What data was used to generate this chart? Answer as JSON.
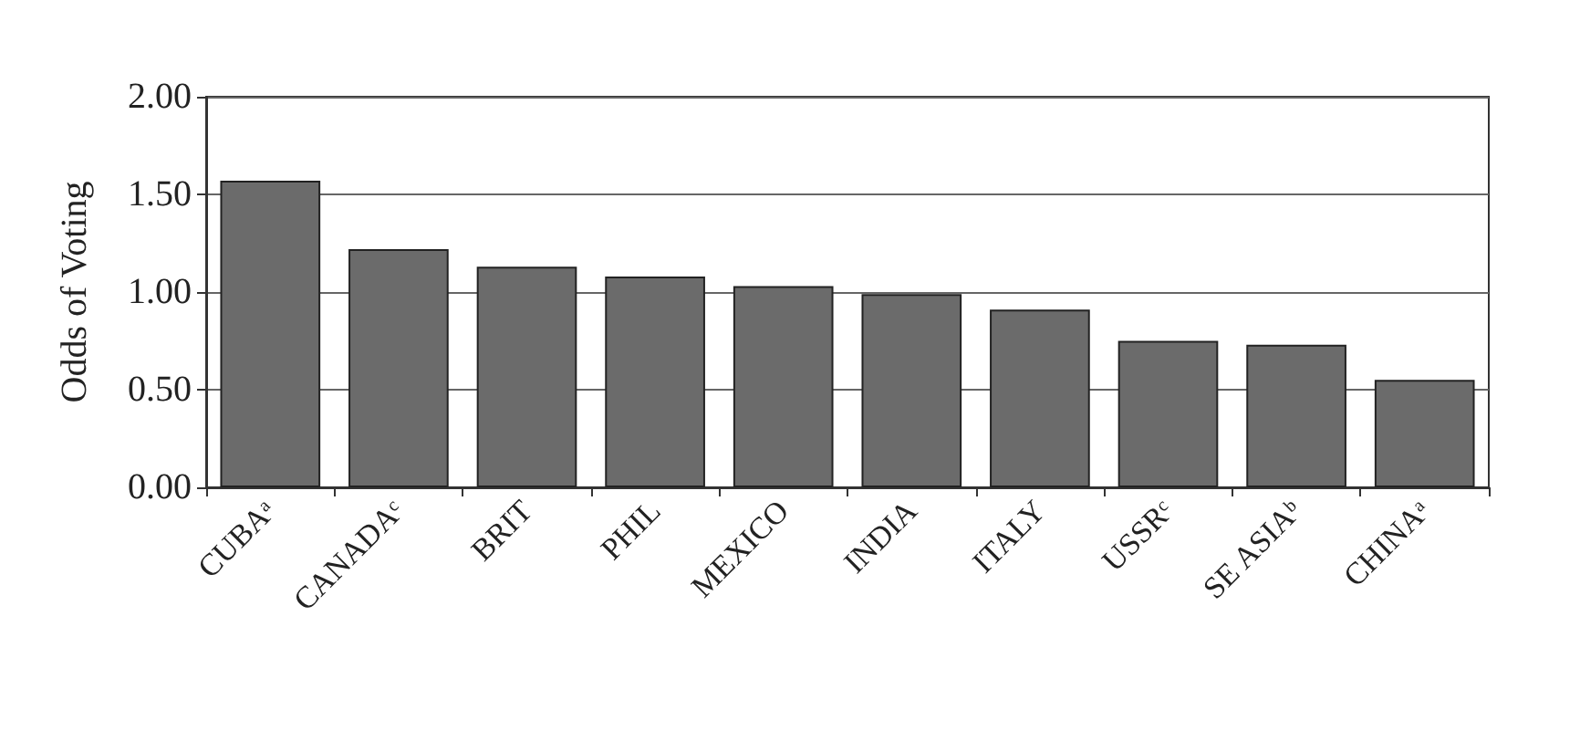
{
  "chart_data": {
    "type": "bar",
    "ylabel": "Odds of Voting",
    "categories": [
      "CUBAᵃ",
      "CANADAᶜ",
      "BRIT",
      "PHIL",
      "MEXICO",
      "INDIA",
      "ITALY",
      "USSRᶜ",
      "SE ASIAᵇ",
      "CHINAᵃ"
    ],
    "values": [
      1.57,
      1.22,
      1.13,
      1.08,
      1.03,
      0.99,
      0.91,
      0.75,
      0.73,
      0.55
    ],
    "color": "#6b6b6b",
    "ylim": [
      0,
      2
    ],
    "yticks": [
      {
        "value": 0,
        "label": "0.00"
      },
      {
        "value": 0.5,
        "label": "0.50"
      },
      {
        "value": 1,
        "label": "1.00"
      },
      {
        "value": 1.5,
        "label": "1.50"
      },
      {
        "value": 2,
        "label": "2.00"
      }
    ],
    "grid": "y"
  }
}
